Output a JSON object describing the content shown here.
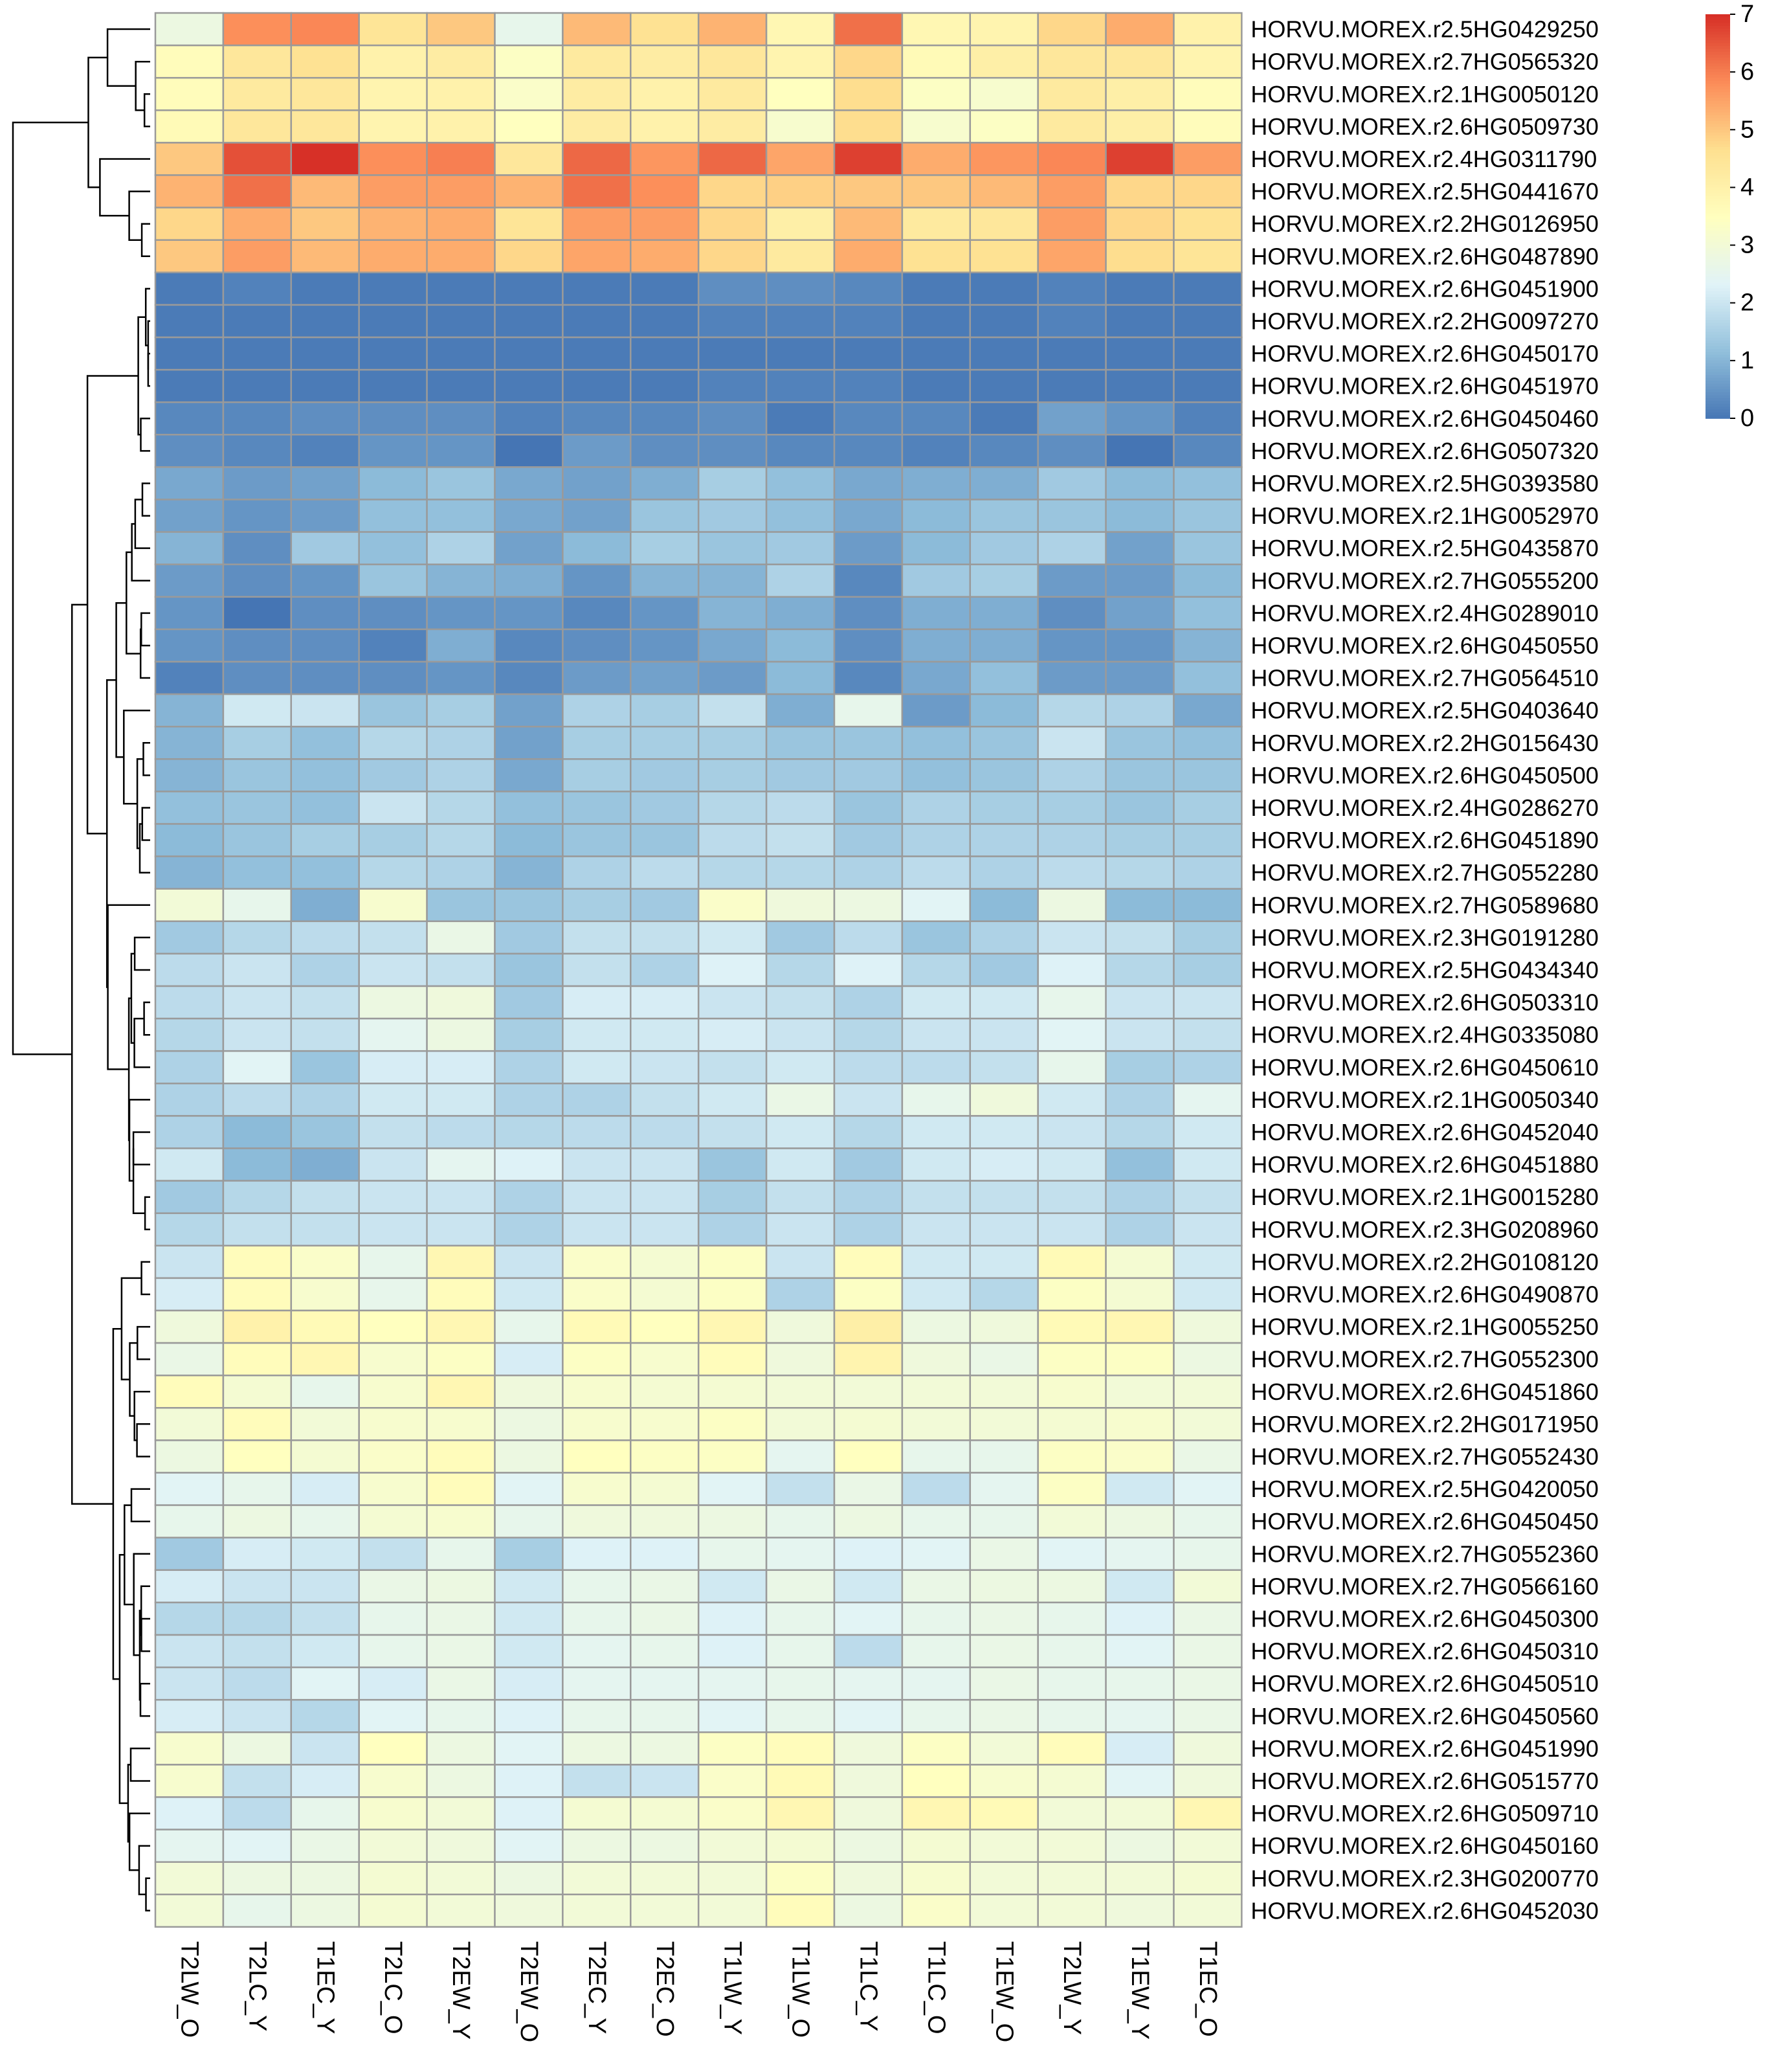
{
  "chart_data": {
    "type": "heatmap",
    "title": "",
    "xlabel": "",
    "ylabel": "",
    "columns": [
      "T2LW_O",
      "T2LC_Y",
      "T1EC_Y",
      "T2LC_O",
      "T2EW_Y",
      "T2EW_O",
      "T2EC_Y",
      "T2EC_O",
      "T1LW_Y",
      "T1LW_O",
      "T1LC_Y",
      "T1LC_O",
      "T1EW_O",
      "T2LW_Y",
      "T1EW_Y",
      "T1EC_O"
    ],
    "rows": [
      "HORVU.MOREX.r2.5HG0429250",
      "HORVU.MOREX.r2.7HG0565320",
      "HORVU.MOREX.r2.1HG0050120",
      "HORVU.MOREX.r2.6HG0509730",
      "HORVU.MOREX.r2.4HG0311790",
      "HORVU.MOREX.r2.5HG0441670",
      "HORVU.MOREX.r2.2HG0126950",
      "HORVU.MOREX.r2.6HG0487890",
      "HORVU.MOREX.r2.6HG0451900",
      "HORVU.MOREX.r2.2HG0097270",
      "HORVU.MOREX.r2.6HG0450170",
      "HORVU.MOREX.r2.6HG0451970",
      "HORVU.MOREX.r2.6HG0450460",
      "HORVU.MOREX.r2.6HG0507320",
      "HORVU.MOREX.r2.5HG0393580",
      "HORVU.MOREX.r2.1HG0052970",
      "HORVU.MOREX.r2.5HG0435870",
      "HORVU.MOREX.r2.7HG0555200",
      "HORVU.MOREX.r2.4HG0289010",
      "HORVU.MOREX.r2.6HG0450550",
      "HORVU.MOREX.r2.7HG0564510",
      "HORVU.MOREX.r2.5HG0403640",
      "HORVU.MOREX.r2.2HG0156430",
      "HORVU.MOREX.r2.6HG0450500",
      "HORVU.MOREX.r2.4HG0286270",
      "HORVU.MOREX.r2.6HG0451890",
      "HORVU.MOREX.r2.7HG0552280",
      "HORVU.MOREX.r2.7HG0589680",
      "HORVU.MOREX.r2.3HG0191280",
      "HORVU.MOREX.r2.5HG0434340",
      "HORVU.MOREX.r2.6HG0503310",
      "HORVU.MOREX.r2.4HG0335080",
      "HORVU.MOREX.r2.6HG0450610",
      "HORVU.MOREX.r2.1HG0050340",
      "HORVU.MOREX.r2.6HG0452040",
      "HORVU.MOREX.r2.6HG0451880",
      "HORVU.MOREX.r2.1HG0015280",
      "HORVU.MOREX.r2.3HG0208960",
      "HORVU.MOREX.r2.2HG0108120",
      "HORVU.MOREX.r2.6HG0490870",
      "HORVU.MOREX.r2.1HG0055250",
      "HORVU.MOREX.r2.7HG0552300",
      "HORVU.MOREX.r2.6HG0451860",
      "HORVU.MOREX.r2.2HG0171950",
      "HORVU.MOREX.r2.7HG0552430",
      "HORVU.MOREX.r2.5HG0420050",
      "HORVU.MOREX.r2.6HG0450450",
      "HORVU.MOREX.r2.7HG0552360",
      "HORVU.MOREX.r2.7HG0566160",
      "HORVU.MOREX.r2.6HG0450300",
      "HORVU.MOREX.r2.6HG0450310",
      "HORVU.MOREX.r2.6HG0450510",
      "HORVU.MOREX.r2.6HG0450560",
      "HORVU.MOREX.r2.6HG0451990",
      "HORVU.MOREX.r2.6HG0515770",
      "HORVU.MOREX.r2.6HG0509710",
      "HORVU.MOREX.r2.6HG0450160",
      "HORVU.MOREX.r2.3HG0200770",
      "HORVU.MOREX.r2.6HG0452030"
    ],
    "values": [
      [
        2.8,
        5.8,
        5.9,
        4.5,
        5.0,
        2.6,
        5.2,
        4.6,
        5.3,
        3.8,
        6.2,
        3.8,
        3.9,
        4.8,
        5.4,
        4.0
      ],
      [
        3.6,
        4.4,
        4.6,
        4.0,
        4.2,
        3.4,
        4.3,
        4.2,
        4.4,
        3.9,
        4.8,
        3.7,
        4.1,
        4.4,
        4.4,
        3.9
      ],
      [
        3.6,
        4.3,
        4.4,
        3.9,
        4.0,
        3.3,
        4.2,
        4.0,
        4.3,
        3.5,
        4.7,
        3.4,
        3.2,
        4.3,
        4.1,
        3.6
      ],
      [
        3.7,
        4.4,
        4.4,
        3.9,
        4.0,
        3.5,
        4.2,
        4.0,
        4.2,
        3.2,
        4.7,
        3.2,
        3.4,
        4.3,
        4.1,
        3.6
      ],
      [
        5.0,
        6.6,
        7.0,
        5.8,
        6.0,
        4.4,
        6.3,
        5.7,
        6.3,
        5.5,
        6.8,
        5.4,
        5.7,
        5.9,
        6.8,
        5.6
      ],
      [
        5.3,
        6.2,
        5.2,
        5.6,
        5.6,
        5.3,
        6.2,
        5.8,
        4.8,
        4.9,
        5.0,
        5.0,
        5.2,
        5.6,
        4.8,
        4.8
      ],
      [
        4.8,
        5.4,
        5.0,
        5.3,
        5.4,
        4.5,
        5.6,
        5.6,
        4.8,
        4.1,
        5.2,
        4.3,
        4.4,
        5.6,
        4.8,
        4.6
      ],
      [
        5.0,
        5.6,
        5.2,
        5.4,
        5.4,
        4.8,
        5.5,
        5.4,
        4.8,
        4.3,
        5.4,
        4.6,
        4.6,
        5.5,
        4.7,
        4.5
      ],
      [
        0.1,
        0.2,
        0.1,
        0.1,
        0.1,
        0.1,
        0.1,
        0.1,
        0.4,
        0.4,
        0.3,
        0.1,
        0.1,
        0.2,
        0.1,
        0.1
      ],
      [
        0.1,
        0.1,
        0.1,
        0.1,
        0.1,
        0.1,
        0.1,
        0.1,
        0.2,
        0.2,
        0.2,
        0.1,
        0.1,
        0.2,
        0.1,
        0.1
      ],
      [
        0.1,
        0.1,
        0.1,
        0.1,
        0.1,
        0.1,
        0.1,
        0.1,
        0.1,
        0.1,
        0.1,
        0.1,
        0.1,
        0.1,
        0.1,
        0.1
      ],
      [
        0.1,
        0.1,
        0.1,
        0.1,
        0.1,
        0.1,
        0.1,
        0.1,
        0.2,
        0.2,
        0.2,
        0.1,
        0.1,
        0.1,
        0.1,
        0.1
      ],
      [
        0.3,
        0.3,
        0.4,
        0.4,
        0.4,
        0.2,
        0.3,
        0.3,
        0.4,
        0.1,
        0.3,
        0.3,
        0.1,
        0.7,
        0.5,
        0.2
      ],
      [
        0.4,
        0.3,
        0.2,
        0.5,
        0.5,
        0.0,
        0.6,
        0.4,
        0.4,
        0.3,
        0.3,
        0.2,
        0.3,
        0.4,
        0.0,
        0.3
      ],
      [
        0.8,
        0.6,
        0.7,
        1.1,
        1.3,
        0.8,
        0.7,
        0.9,
        1.5,
        1.2,
        0.8,
        0.9,
        0.9,
        1.4,
        1.1,
        1.2
      ],
      [
        0.7,
        0.5,
        0.6,
        1.2,
        1.2,
        0.8,
        0.7,
        1.3,
        1.4,
        1.2,
        0.8,
        1.1,
        1.3,
        1.3,
        1.1,
        1.3
      ],
      [
        1.0,
        0.4,
        1.4,
        1.2,
        1.6,
        0.7,
        1.1,
        1.5,
        1.3,
        1.4,
        0.6,
        1.1,
        1.4,
        1.6,
        0.7,
        1.3
      ],
      [
        0.6,
        0.4,
        0.5,
        1.3,
        1.0,
        0.9,
        0.5,
        1.0,
        1.0,
        1.6,
        0.3,
        1.4,
        1.5,
        0.6,
        0.6,
        1.1
      ],
      [
        0.5,
        0.0,
        0.4,
        0.4,
        0.5,
        0.5,
        0.3,
        0.5,
        1.0,
        0.9,
        0.4,
        0.9,
        0.9,
        0.4,
        0.7,
        1.2
      ],
      [
        0.5,
        0.4,
        0.4,
        0.2,
        0.9,
        0.3,
        0.4,
        0.5,
        0.8,
        1.1,
        0.4,
        0.9,
        0.9,
        0.5,
        0.5,
        1.0
      ],
      [
        0.2,
        0.4,
        0.4,
        0.4,
        0.5,
        0.3,
        0.6,
        0.7,
        0.6,
        1.1,
        0.3,
        0.8,
        1.2,
        0.6,
        0.6,
        1.2
      ],
      [
        1.0,
        2.1,
        2.0,
        1.3,
        1.5,
        0.7,
        1.6,
        1.5,
        1.9,
        0.9,
        2.6,
        0.6,
        1.1,
        1.7,
        1.6,
        0.8
      ],
      [
        1.0,
        1.5,
        1.2,
        1.7,
        1.6,
        0.7,
        1.5,
        1.5,
        1.5,
        1.3,
        1.3,
        1.2,
        1.3,
        2.0,
        1.3,
        1.2
      ],
      [
        1.0,
        1.3,
        1.2,
        1.4,
        1.6,
        0.8,
        1.5,
        1.4,
        1.5,
        1.4,
        1.4,
        1.2,
        1.3,
        1.6,
        1.3,
        1.3
      ],
      [
        1.2,
        1.3,
        1.2,
        2.0,
        1.7,
        1.2,
        1.3,
        1.4,
        1.7,
        1.8,
        1.3,
        1.6,
        1.5,
        1.5,
        1.3,
        1.5
      ],
      [
        1.1,
        1.3,
        1.5,
        1.5,
        1.7,
        1.1,
        1.3,
        1.3,
        1.8,
        1.9,
        1.4,
        1.6,
        1.6,
        1.6,
        1.5,
        1.5
      ],
      [
        1.0,
        1.2,
        1.2,
        1.7,
        1.6,
        1.0,
        1.6,
        1.8,
        1.7,
        1.7,
        1.6,
        1.8,
        1.6,
        1.8,
        1.7,
        1.6
      ],
      [
        3.0,
        2.6,
        0.9,
        3.2,
        1.3,
        1.3,
        1.5,
        1.4,
        3.3,
        2.9,
        2.8,
        2.4,
        1.1,
        2.8,
        1.1,
        1.1
      ],
      [
        1.4,
        1.7,
        1.8,
        1.9,
        2.7,
        1.4,
        1.9,
        1.9,
        2.1,
        1.4,
        1.8,
        1.3,
        1.6,
        2.0,
        1.9,
        1.5
      ],
      [
        1.8,
        2.0,
        1.6,
        2.0,
        1.9,
        1.3,
        1.9,
        1.6,
        2.3,
        1.7,
        2.3,
        1.7,
        1.4,
        2.3,
        1.7,
        1.5
      ],
      [
        1.8,
        2.0,
        1.9,
        2.8,
        2.9,
        1.4,
        2.2,
        2.2,
        2.0,
        1.9,
        1.6,
        2.1,
        2.1,
        2.6,
        2.0,
        2.0
      ],
      [
        1.7,
        2.0,
        1.9,
        2.5,
        2.8,
        1.5,
        2.1,
        2.1,
        2.2,
        2.0,
        1.7,
        2.0,
        2.0,
        2.4,
        2.0,
        1.9
      ],
      [
        1.6,
        2.4,
        1.3,
        2.2,
        2.2,
        1.6,
        2.1,
        2.0,
        1.9,
        2.1,
        1.8,
        1.8,
        1.9,
        2.6,
        1.5,
        1.6
      ],
      [
        1.6,
        1.8,
        1.6,
        2.1,
        2.1,
        1.6,
        1.6,
        1.9,
        2.1,
        2.7,
        2.0,
        2.6,
        2.9,
        2.1,
        1.6,
        2.5
      ],
      [
        1.6,
        1.1,
        1.3,
        1.9,
        1.8,
        1.7,
        1.8,
        1.8,
        1.9,
        2.1,
        1.7,
        2.1,
        2.1,
        2.0,
        1.7,
        2.1
      ],
      [
        2.1,
        1.1,
        0.9,
        2.0,
        2.5,
        2.3,
        2.0,
        2.0,
        1.3,
        2.1,
        1.4,
        2.1,
        2.2,
        2.1,
        1.2,
        2.1
      ],
      [
        1.4,
        1.7,
        1.9,
        2.0,
        2.0,
        1.6,
        2.0,
        2.0,
        1.5,
        1.9,
        1.6,
        1.9,
        1.9,
        1.9,
        1.6,
        1.9
      ],
      [
        1.7,
        1.9,
        1.9,
        2.0,
        2.0,
        1.6,
        2.0,
        2.0,
        1.6,
        2.0,
        1.6,
        2.0,
        2.0,
        2.0,
        1.6,
        2.0
      ],
      [
        2.0,
        3.6,
        3.3,
        2.6,
        3.8,
        2.0,
        3.3,
        3.1,
        3.4,
        2.0,
        3.6,
        2.1,
        2.1,
        3.7,
        3.1,
        2.1
      ],
      [
        2.2,
        3.6,
        3.2,
        2.6,
        3.6,
        2.1,
        3.3,
        3.1,
        3.4,
        1.6,
        3.4,
        2.1,
        1.7,
        3.4,
        3.1,
        2.1
      ],
      [
        2.9,
        4.0,
        3.7,
        3.5,
        3.8,
        2.6,
        3.7,
        3.5,
        3.8,
        2.9,
        4.1,
        2.8,
        2.9,
        3.7,
        3.8,
        2.9
      ],
      [
        2.7,
        3.6,
        3.8,
        3.2,
        3.4,
        2.2,
        3.4,
        3.2,
        3.6,
        2.9,
        3.9,
        2.9,
        2.7,
        3.4,
        3.4,
        2.8
      ],
      [
        3.6,
        3.1,
        2.6,
        3.2,
        3.8,
        2.9,
        3.2,
        3.1,
        3.1,
        3.0,
        3.0,
        3.0,
        3.0,
        3.2,
        3.0,
        3.0
      ],
      [
        3.0,
        3.6,
        3.0,
        3.2,
        3.2,
        2.8,
        3.2,
        3.2,
        3.4,
        3.0,
        3.1,
        3.0,
        3.0,
        3.1,
        3.2,
        3.0
      ],
      [
        2.8,
        3.5,
        3.1,
        3.3,
        3.6,
        2.8,
        3.5,
        3.4,
        3.4,
        2.5,
        3.5,
        2.6,
        2.6,
        3.4,
        3.3,
        2.7
      ],
      [
        2.4,
        2.6,
        2.2,
        3.2,
        3.6,
        2.4,
        3.2,
        3.1,
        2.4,
        1.9,
        2.7,
        1.8,
        2.5,
        3.4,
        2.1,
        2.4
      ],
      [
        2.6,
        2.8,
        2.6,
        3.1,
        3.2,
        2.6,
        2.9,
        2.9,
        2.8,
        2.6,
        2.8,
        2.6,
        2.6,
        3.0,
        2.8,
        2.6
      ],
      [
        1.4,
        2.2,
        2.1,
        1.9,
        2.6,
        1.5,
        2.3,
        2.3,
        2.6,
        2.5,
        2.3,
        2.4,
        2.7,
        2.4,
        2.5,
        2.6
      ],
      [
        2.2,
        2.0,
        2.0,
        2.7,
        2.8,
        2.1,
        2.6,
        2.7,
        2.1,
        2.7,
        2.1,
        2.7,
        2.8,
        2.8,
        2.1,
        3.0
      ],
      [
        1.7,
        1.7,
        1.9,
        2.6,
        2.7,
        2.1,
        2.6,
        2.7,
        2.3,
        2.6,
        2.4,
        2.6,
        2.7,
        2.6,
        2.3,
        2.7
      ],
      [
        2.0,
        1.9,
        2.1,
        2.6,
        2.7,
        2.1,
        2.5,
        2.6,
        2.3,
        2.6,
        1.8,
        2.6,
        2.7,
        2.6,
        2.4,
        2.7
      ],
      [
        2.0,
        1.8,
        2.4,
        2.2,
        2.7,
        2.2,
        2.5,
        2.5,
        2.5,
        2.6,
        2.5,
        2.5,
        2.7,
        2.6,
        2.6,
        2.7
      ],
      [
        2.2,
        2.0,
        1.7,
        2.4,
        2.6,
        2.3,
        2.6,
        2.6,
        2.4,
        2.6,
        2.4,
        2.6,
        2.7,
        2.6,
        2.5,
        2.7
      ],
      [
        3.2,
        2.8,
        2.0,
        3.5,
        2.8,
        2.4,
        2.8,
        2.8,
        3.4,
        3.6,
        2.9,
        3.4,
        3.0,
        3.6,
        2.2,
        2.9
      ],
      [
        3.2,
        1.9,
        2.2,
        3.2,
        2.8,
        2.3,
        1.9,
        2.0,
        3.3,
        3.7,
        2.9,
        3.5,
        3.2,
        3.1,
        2.4,
        2.9
      ],
      [
        2.3,
        1.8,
        2.6,
        3.2,
        3.0,
        2.3,
        3.1,
        3.1,
        3.3,
        3.8,
        2.9,
        3.8,
        3.7,
        3.0,
        3.0,
        3.8
      ],
      [
        2.5,
        2.4,
        2.7,
        3.0,
        2.9,
        2.4,
        2.8,
        2.8,
        3.0,
        3.1,
        2.8,
        3.1,
        3.0,
        3.0,
        2.8,
        3.0
      ],
      [
        3.0,
        2.8,
        2.8,
        3.1,
        3.0,
        2.8,
        3.0,
        3.0,
        3.0,
        3.4,
        2.9,
        3.2,
        3.0,
        3.0,
        3.0,
        3.1
      ],
      [
        3.0,
        2.6,
        2.8,
        3.1,
        3.0,
        2.9,
        3.0,
        3.0,
        3.0,
        3.6,
        2.8,
        3.3,
        3.0,
        3.0,
        2.9,
        3.0
      ]
    ],
    "color_scale": {
      "min": 0,
      "max": 7,
      "stops": [
        {
          "v": 0.0,
          "color": "#4575b4"
        },
        {
          "v": 1.17,
          "color": "#91bfdb"
        },
        {
          "v": 2.33,
          "color": "#e0f3f8"
        },
        {
          "v": 3.5,
          "color": "#ffffbf"
        },
        {
          "v": 4.67,
          "color": "#fee090"
        },
        {
          "v": 5.83,
          "color": "#fc8d59"
        },
        {
          "v": 7.0,
          "color": "#d73027"
        }
      ],
      "ticks": [
        0,
        1,
        2,
        3,
        4,
        5,
        6,
        7
      ]
    },
    "cell_border_color": "#9a9a9a",
    "row_dendrogram": true,
    "legend_placement": "top-right"
  }
}
